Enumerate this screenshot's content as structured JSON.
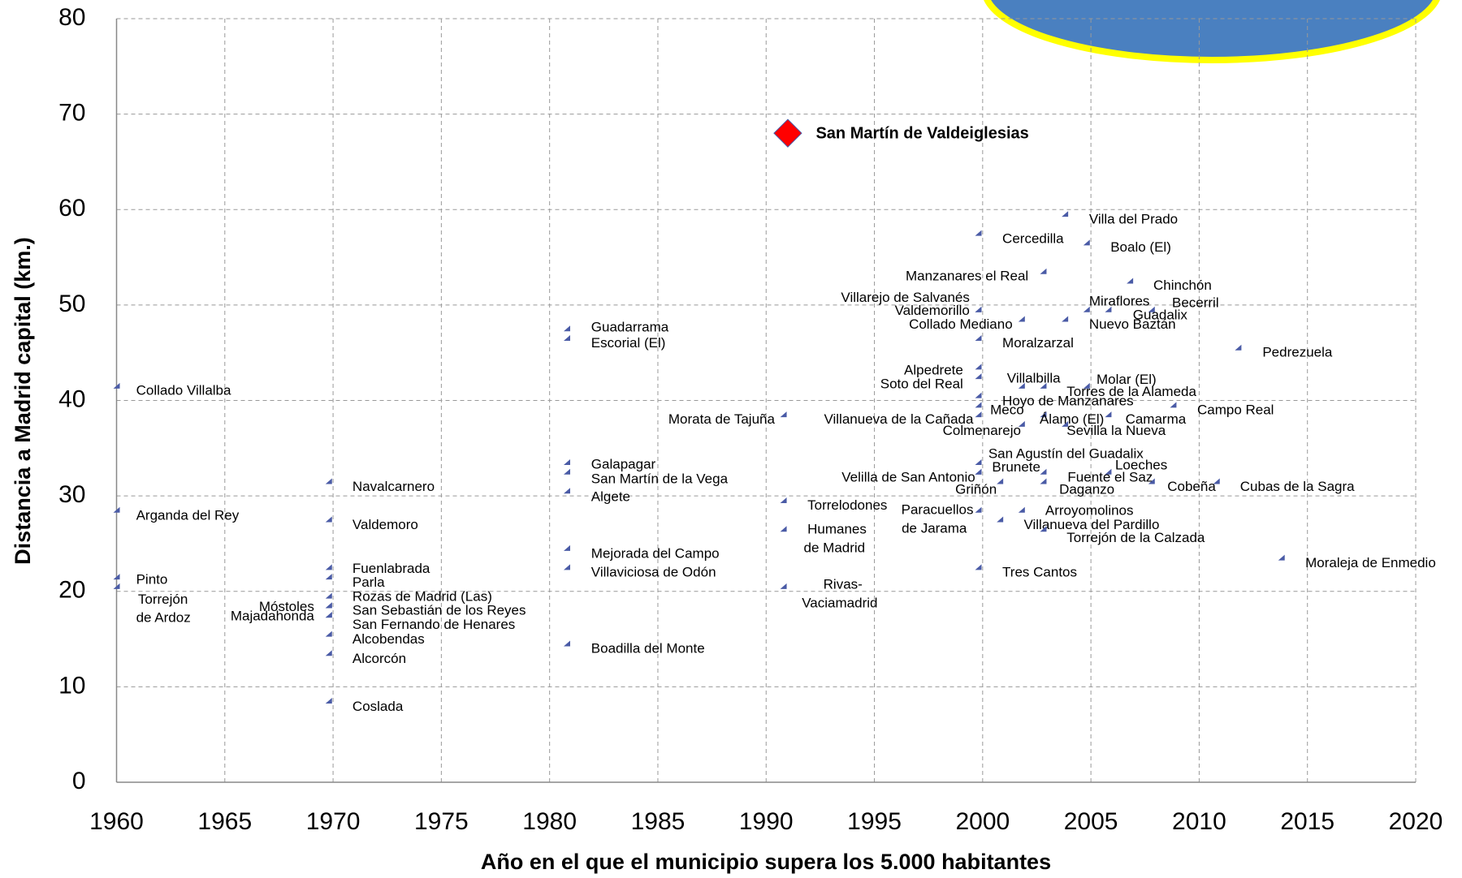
{
  "chart_data": {
    "type": "scatter",
    "xlabel": "Año en el que el municipio supera los 5.000 habitantes",
    "ylabel": "Distancia a Madrid capital (km.)",
    "xlim": [
      1960,
      2020
    ],
    "xticks": [
      1960,
      1965,
      1970,
      1975,
      1980,
      1985,
      1990,
      1995,
      2000,
      2005,
      2010,
      2015,
      2020
    ],
    "ylim": [
      0,
      80
    ],
    "yticks": [
      0,
      10,
      20,
      30,
      40,
      50,
      60,
      70,
      80
    ],
    "grid": true,
    "series": [
      {
        "color": "#4a5ba6",
        "marker": "triangle",
        "x": [
          1960,
          1960,
          1960,
          1960,
          1969.8,
          1969.8,
          1969.8,
          1969.8,
          1969.8,
          1969.8,
          1969.8,
          1969.8,
          1969.8,
          1969.8,
          1969.8,
          1969.8,
          1980.8,
          1980.8,
          1980.8,
          1980.8,
          1980.8,
          1980.8,
          1980.8,
          1980.8,
          1990.8,
          1990.8,
          1990.8,
          1990.8,
          1999.8,
          2003.8,
          2004.8,
          2002.8,
          2006.8,
          1999.8,
          1999.8,
          2004.8,
          2007.8,
          2005.8,
          2001.8,
          2003.8,
          1999.8,
          2011.8,
          1999.8,
          1999.8,
          2001.8,
          2004.8,
          2002.8,
          1999.8,
          1999.8,
          2008.8,
          1999.8,
          2002.8,
          2005.8,
          2001.8,
          2003.8,
          1999.8,
          1999.8,
          2005.8,
          1999.8,
          2002.8,
          2000.8,
          2002.8,
          2007.8,
          2010.8,
          1999.8,
          2001.8,
          2000.8,
          2002.8,
          2013.8,
          1999.8
        ],
        "values": [
          41.5,
          28.5,
          21.5,
          20.5,
          31.5,
          27.5,
          22.5,
          21.5,
          19.5,
          18.5,
          18.5,
          17.5,
          17.5,
          15.5,
          13.5,
          8.5,
          47.5,
          46.5,
          33.5,
          32.5,
          30.5,
          24.5,
          22.5,
          14.5,
          38.5,
          29.5,
          26.5,
          20.5,
          57.5,
          59.5,
          56.5,
          53.5,
          52.5,
          49.5,
          49.5,
          49.5,
          49.5,
          49.5,
          48.5,
          48.5,
          46.5,
          45.5,
          43.5,
          42.5,
          41.5,
          41.5,
          41.5,
          40.5,
          39.5,
          39.5,
          38.5,
          38.5,
          38.5,
          37.5,
          37.5,
          33.5,
          32.5,
          32.5,
          32.5,
          32.5,
          31.5,
          31.5,
          31.5,
          31.5,
          28.5,
          28.5,
          27.5,
          26.5,
          23.5,
          22.5
        ],
        "labels": [
          "Collado Villalba",
          "Arganda del Rey",
          "Pinto",
          [
            "Torrejón",
            "de Ardoz"
          ],
          "Navalcarnero",
          "Valdemoro",
          "Fuenlabrada",
          "Parla",
          "Rozas de Madrid (Las)",
          "Móstoles",
          "San Sebastián de los Reyes",
          "Majadahonda",
          "San Fernando de Henares",
          "Alcobendas",
          "Alcorcón",
          "Coslada",
          "Guadarrama",
          "Escorial (El)",
          "Galapagar",
          "San Martín de la Vega",
          "Algete",
          "Mejorada del Campo",
          "Villaviciosa de Odón",
          "Boadilla del Monte",
          "Morata de Tajuña",
          "Torrelodones",
          [
            "Humanes",
            "de Madrid"
          ],
          [
            "Rivas-",
            "Vaciamadrid"
          ],
          "Cercedilla",
          "Villa del Prado",
          "Boalo (El)",
          "Manzanares el Real",
          "Chinchón",
          "Villarejo de Salvanés",
          "Valdemorillo",
          "Miraflores",
          "Becerril",
          "Guadalix",
          "Collado Mediano",
          "Nuevo Baztán",
          "Moralzarzal",
          "Pedrezuela",
          "Alpedrete",
          "Soto del Real",
          "Villalbilla",
          "Molar (El)",
          "Torres de la Alameda",
          "Hoyo de Manzanares",
          "Meco",
          "Campo Real",
          "Villanueva de la Cañada",
          "Álamo (El)",
          "Camarma",
          "Colmenarejo",
          "Sevilla la Nueva",
          "San Agustín del Guadalix",
          "Brunete",
          "Loeches",
          "Velilla de San Antonio",
          "Fuente el Saz",
          "Griñón",
          "Daganzo",
          "Cobeña",
          "Cubas de la Sagra",
          [
            "Paracuellos",
            "de Jarama"
          ],
          "Arroyomolinos",
          "Villanueva del Pardillo",
          "Torrejón de la Calzada",
          "Moraleja de Enmedio",
          "Tres Cantos"
        ]
      },
      {
        "color": "#ff0000",
        "marker": "diamond",
        "x": [
          1991
        ],
        "values": [
          68
        ],
        "labels": [
          "San Martín de Valdeiglesias"
        ]
      }
    ]
  }
}
